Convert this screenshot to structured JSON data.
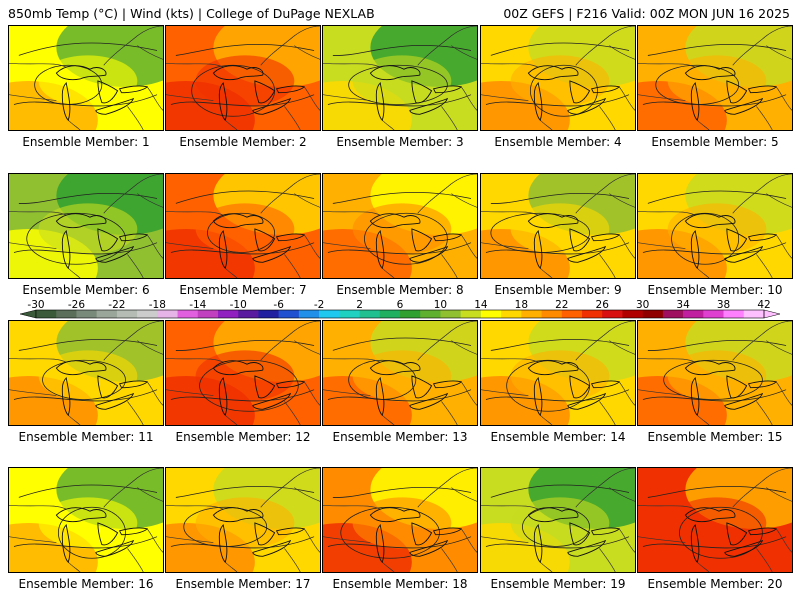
{
  "header": {
    "left": "850mb Temp (°C) | Wind (kts) | College of DuPage NEXLAB",
    "right": "00Z GEFS | F216 Valid: 00Z MON JUN 16 2025"
  },
  "members": [
    {
      "label": "Ensemble Member: 1",
      "warmth": 0.4
    },
    {
      "label": "Ensemble Member: 2",
      "warmth": 0.85
    },
    {
      "label": "Ensemble Member: 3",
      "warmth": 0.3
    },
    {
      "label": "Ensemble Member: 4",
      "warmth": 0.55
    },
    {
      "label": "Ensemble Member: 5",
      "warmth": 0.6
    },
    {
      "label": "Ensemble Member: 6",
      "warmth": 0.25
    },
    {
      "label": "Ensemble Member: 7",
      "warmth": 0.8
    },
    {
      "label": "Ensemble Member: 8",
      "warmth": 0.65
    },
    {
      "label": "Ensemble Member: 9",
      "warmth": 0.5
    },
    {
      "label": "Ensemble Member: 10",
      "warmth": 0.55
    },
    {
      "label": "Ensemble Member: 11",
      "warmth": 0.5
    },
    {
      "label": "Ensemble Member: 12",
      "warmth": 0.85
    },
    {
      "label": "Ensemble Member: 13",
      "warmth": 0.6
    },
    {
      "label": "Ensemble Member: 14",
      "warmth": 0.55
    },
    {
      "label": "Ensemble Member: 15",
      "warmth": 0.6
    },
    {
      "label": "Ensemble Member: 16",
      "warmth": 0.4
    },
    {
      "label": "Ensemble Member: 17",
      "warmth": 0.55
    },
    {
      "label": "Ensemble Member: 18",
      "warmth": 0.7
    },
    {
      "label": "Ensemble Member: 19",
      "warmth": 0.3
    },
    {
      "label": "Ensemble Member: 20",
      "warmth": 0.9
    }
  ],
  "colorbar": {
    "labels": [
      "-30",
      "-26",
      "-22",
      "-18",
      "-14",
      "-10",
      "-6",
      "-2",
      "2",
      "6",
      "10",
      "14",
      "18",
      "22",
      "26",
      "30",
      "34",
      "38",
      "42"
    ],
    "colors": [
      "#3a5a3a",
      "#5a6e5a",
      "#7a8a7a",
      "#9aa69a",
      "#b4bcb4",
      "#cccccc",
      "#e6b4e6",
      "#e060e0",
      "#c040c0",
      "#9020c0",
      "#5a1aa0",
      "#2020a0",
      "#2050d0",
      "#2090e8",
      "#20c8f0",
      "#20d0c0",
      "#20c090",
      "#20b060",
      "#30a030",
      "#60b030",
      "#90c030",
      "#c8dc20",
      "#ffff00",
      "#ffd800",
      "#ffb000",
      "#ff8c00",
      "#ff6000",
      "#f03000",
      "#d81010",
      "#b00000",
      "#900000",
      "#a01060",
      "#c020a0",
      "#e040d0",
      "#ff80ff",
      "#ffc0ff"
    ]
  }
}
